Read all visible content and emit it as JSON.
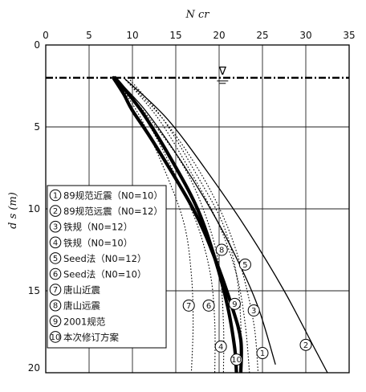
{
  "chart_data": {
    "type": "line",
    "xlabel": "N cr",
    "ylabel": "d s (m)",
    "xlim": [
      0,
      35
    ],
    "ylim": [
      0,
      20
    ],
    "y_inverted": true,
    "x_ticks": [
      0,
      5,
      10,
      15,
      20,
      25,
      30,
      35
    ],
    "y_ticks": [
      0,
      5,
      10,
      15,
      20
    ],
    "water_table_depth": 2,
    "water_table_symbol": "∇",
    "legend_position": "left",
    "series": [
      {
        "id": "1",
        "name": "89规范近震（N0=10）",
        "style": "solid-thin",
        "x": [
          8.0,
          11.5,
          15.5,
          19.0,
          22.0,
          24.5,
          26.5
        ],
        "y": [
          2,
          4,
          7,
          10,
          13,
          16,
          19.5
        ]
      },
      {
        "id": "2",
        "name": "89规范远震（N0=12）",
        "style": "solid-thin",
        "x": [
          9.0,
          14.0,
          19.0,
          23.5,
          27.5,
          31.0,
          32.5
        ],
        "y": [
          2,
          4.5,
          8,
          11.5,
          15,
          18.5,
          20
        ]
      },
      {
        "id": "3",
        "name": "铁规（N0=12）",
        "style": "dotted",
        "x": [
          9.0,
          13.5,
          17.5,
          20.5,
          22.5,
          24.0,
          24.5
        ],
        "y": [
          2,
          4.5,
          7.5,
          10.5,
          13.5,
          17,
          20
        ]
      },
      {
        "id": "4",
        "name": "铁规（N0=10）",
        "style": "dotted",
        "x": [
          8.0,
          12.0,
          16.0,
          18.5,
          20.0,
          20.5,
          20.5
        ],
        "y": [
          2,
          4.5,
          7.5,
          10.5,
          13.5,
          17,
          20
        ]
      },
      {
        "id": "5",
        "name": "Seed法（N0=12）",
        "style": "dotted",
        "x": [
          9.0,
          13.0,
          17.0,
          20.0,
          22.0,
          23.0,
          23.5
        ],
        "y": [
          2,
          4.5,
          8,
          11,
          14,
          17,
          20
        ]
      },
      {
        "id": "6",
        "name": "Seed法（N0=10）",
        "style": "dotted",
        "x": [
          8.0,
          11.5,
          15.0,
          17.5,
          19.0,
          19.5,
          19.5
        ],
        "y": [
          2,
          4.5,
          8,
          11,
          14,
          17,
          20
        ]
      },
      {
        "id": "7",
        "name": "唐山近震",
        "style": "dotted",
        "x": [
          8.0,
          11.0,
          14.0,
          16.0,
          16.8,
          17.0,
          16.8
        ],
        "y": [
          2,
          4.5,
          8,
          11,
          14,
          17,
          20
        ]
      },
      {
        "id": "8",
        "name": "唐山远震",
        "style": "dotted",
        "x": [
          9.5,
          13.5,
          17.5,
          20.5,
          22.0,
          22.5,
          22.5
        ],
        "y": [
          2,
          4.5,
          8,
          11,
          14,
          17,
          20
        ]
      },
      {
        "id": "9",
        "name": "2001规范",
        "style": "solid-thick",
        "x": [
          7.8,
          9.0,
          10.0,
          12.5,
          17.0,
          19.5,
          21.5,
          22.5,
          22.5
        ],
        "y": [
          2,
          3,
          4,
          6,
          10,
          13,
          16,
          18,
          20
        ]
      },
      {
        "id": "10",
        "name": "本次修订方案",
        "style": "solid-thick",
        "x": [
          8.0,
          11.0,
          14.5,
          17.5,
          19.5,
          21.0,
          21.8,
          22.0
        ],
        "y": [
          2,
          4,
          7,
          10,
          13,
          16,
          18.5,
          20
        ]
      }
    ],
    "markers": [
      {
        "id": "1",
        "x": 25.0,
        "y": 18.8
      },
      {
        "id": "2",
        "x": 30.0,
        "y": 18.3
      },
      {
        "id": "3",
        "x": 24.0,
        "y": 16.2
      },
      {
        "id": "4",
        "x": 20.2,
        "y": 18.4
      },
      {
        "id": "5",
        "x": 23.0,
        "y": 13.4
      },
      {
        "id": "6",
        "x": 18.8,
        "y": 15.9
      },
      {
        "id": "7",
        "x": 16.5,
        "y": 15.9
      },
      {
        "id": "8",
        "x": 20.3,
        "y": 12.5
      },
      {
        "id": "9",
        "x": 21.8,
        "y": 15.8
      },
      {
        "id": "10",
        "x": 22.0,
        "y": 19.2
      }
    ]
  }
}
